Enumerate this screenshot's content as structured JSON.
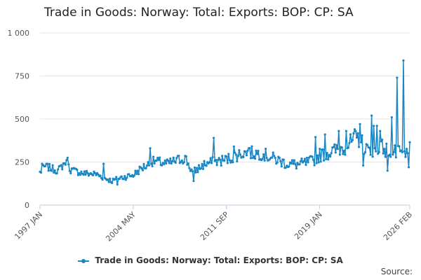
{
  "colors": {
    "series": "#1a86c4",
    "grid": "#e6e6e6",
    "axis": "#c0c8d8"
  },
  "legend": {
    "label": "Trade in Goods: Norway: Total: Exports: BOP: CP: SA"
  },
  "source": {
    "label": "Source:"
  },
  "chart_data": {
    "type": "line",
    "title": "Trade in Goods: Norway: Total: Exports: BOP: CP: SA",
    "xlabel": "",
    "ylabel": "",
    "ylim": [
      0,
      1000
    ],
    "yticks": [
      0,
      250,
      500,
      750,
      1000
    ],
    "ytick_labels": [
      "0",
      "250",
      "500",
      "750",
      "1 000"
    ],
    "xticks": [
      {
        "label": "1997 JAN",
        "year": 1997,
        "month": 1
      },
      {
        "label": "2004 MAY",
        "year": 2004,
        "month": 5
      },
      {
        "label": "2011 SEP",
        "year": 2011,
        "month": 9
      },
      {
        "label": "2019 JAN",
        "year": 2019,
        "month": 1
      },
      {
        "label": "2026 FEB",
        "year": 2026,
        "month": 2
      }
    ],
    "grid": true,
    "legend_position": "bottom",
    "series": [
      {
        "name": "Trade in Goods: Norway: Total: Exports: BOP: CP: SA",
        "start": "1997-01",
        "end": "2026-02",
        "frequency": "monthly",
        "anchors": [
          [
            "1997-01",
            190
          ],
          [
            "1997-06",
            225
          ],
          [
            "1998-06",
            200
          ],
          [
            "1999-01",
            250
          ],
          [
            "1999-06",
            205
          ],
          [
            "2000-06",
            185
          ],
          [
            "2001-06",
            180
          ],
          [
            "2002-01",
            160
          ],
          [
            "2002-09",
            140
          ],
          [
            "2003-06",
            160
          ],
          [
            "2004-05",
            175
          ],
          [
            "2005-01",
            215
          ],
          [
            "2006-01",
            255
          ],
          [
            "2007-01",
            240
          ],
          [
            "2008-06",
            275
          ],
          [
            "2009-01",
            190
          ],
          [
            "2010-01",
            240
          ],
          [
            "2011-09",
            265
          ],
          [
            "2013-01",
            305
          ],
          [
            "2014-06",
            300
          ],
          [
            "2015-06",
            270
          ],
          [
            "2016-06",
            240
          ],
          [
            "2017-06",
            235
          ],
          [
            "2018-06",
            255
          ],
          [
            "2019-01",
            290
          ],
          [
            "2020-01",
            310
          ],
          [
            "2021-01",
            340
          ],
          [
            "2022-01",
            390
          ],
          [
            "2023-01",
            300
          ],
          [
            "2024-01",
            340
          ],
          [
            "2025-01",
            300
          ],
          [
            "2026-02",
            300
          ]
        ],
        "spikes": [
          [
            "1997-03",
            240
          ],
          [
            "1999-03",
            275
          ],
          [
            "2002-01",
            240
          ],
          [
            "2003-02",
            120
          ],
          [
            "2005-09",
            330
          ],
          [
            "2009-02",
            140
          ],
          [
            "2010-09",
            390
          ],
          [
            "2012-04",
            340
          ],
          [
            "2013-06",
            330
          ],
          [
            "2015-05",
            305
          ],
          [
            "2018-09",
            395
          ],
          [
            "2019-06",
            410
          ],
          [
            "2020-07",
            430
          ],
          [
            "2021-02",
            430
          ],
          [
            "2021-10",
            440
          ],
          [
            "2022-03",
            470
          ],
          [
            "2022-06",
            230
          ],
          [
            "2023-02",
            520
          ],
          [
            "2023-04",
            460
          ],
          [
            "2023-07",
            460
          ],
          [
            "2023-10",
            430
          ],
          [
            "2024-03",
            280
          ],
          [
            "2024-05",
            200
          ],
          [
            "2024-09",
            510
          ],
          [
            "2025-02",
            740
          ],
          [
            "2025-08",
            840
          ],
          [
            "2025-10",
            280
          ],
          [
            "2026-01",
            220
          ],
          [
            "2026-02",
            365
          ]
        ]
      }
    ]
  }
}
